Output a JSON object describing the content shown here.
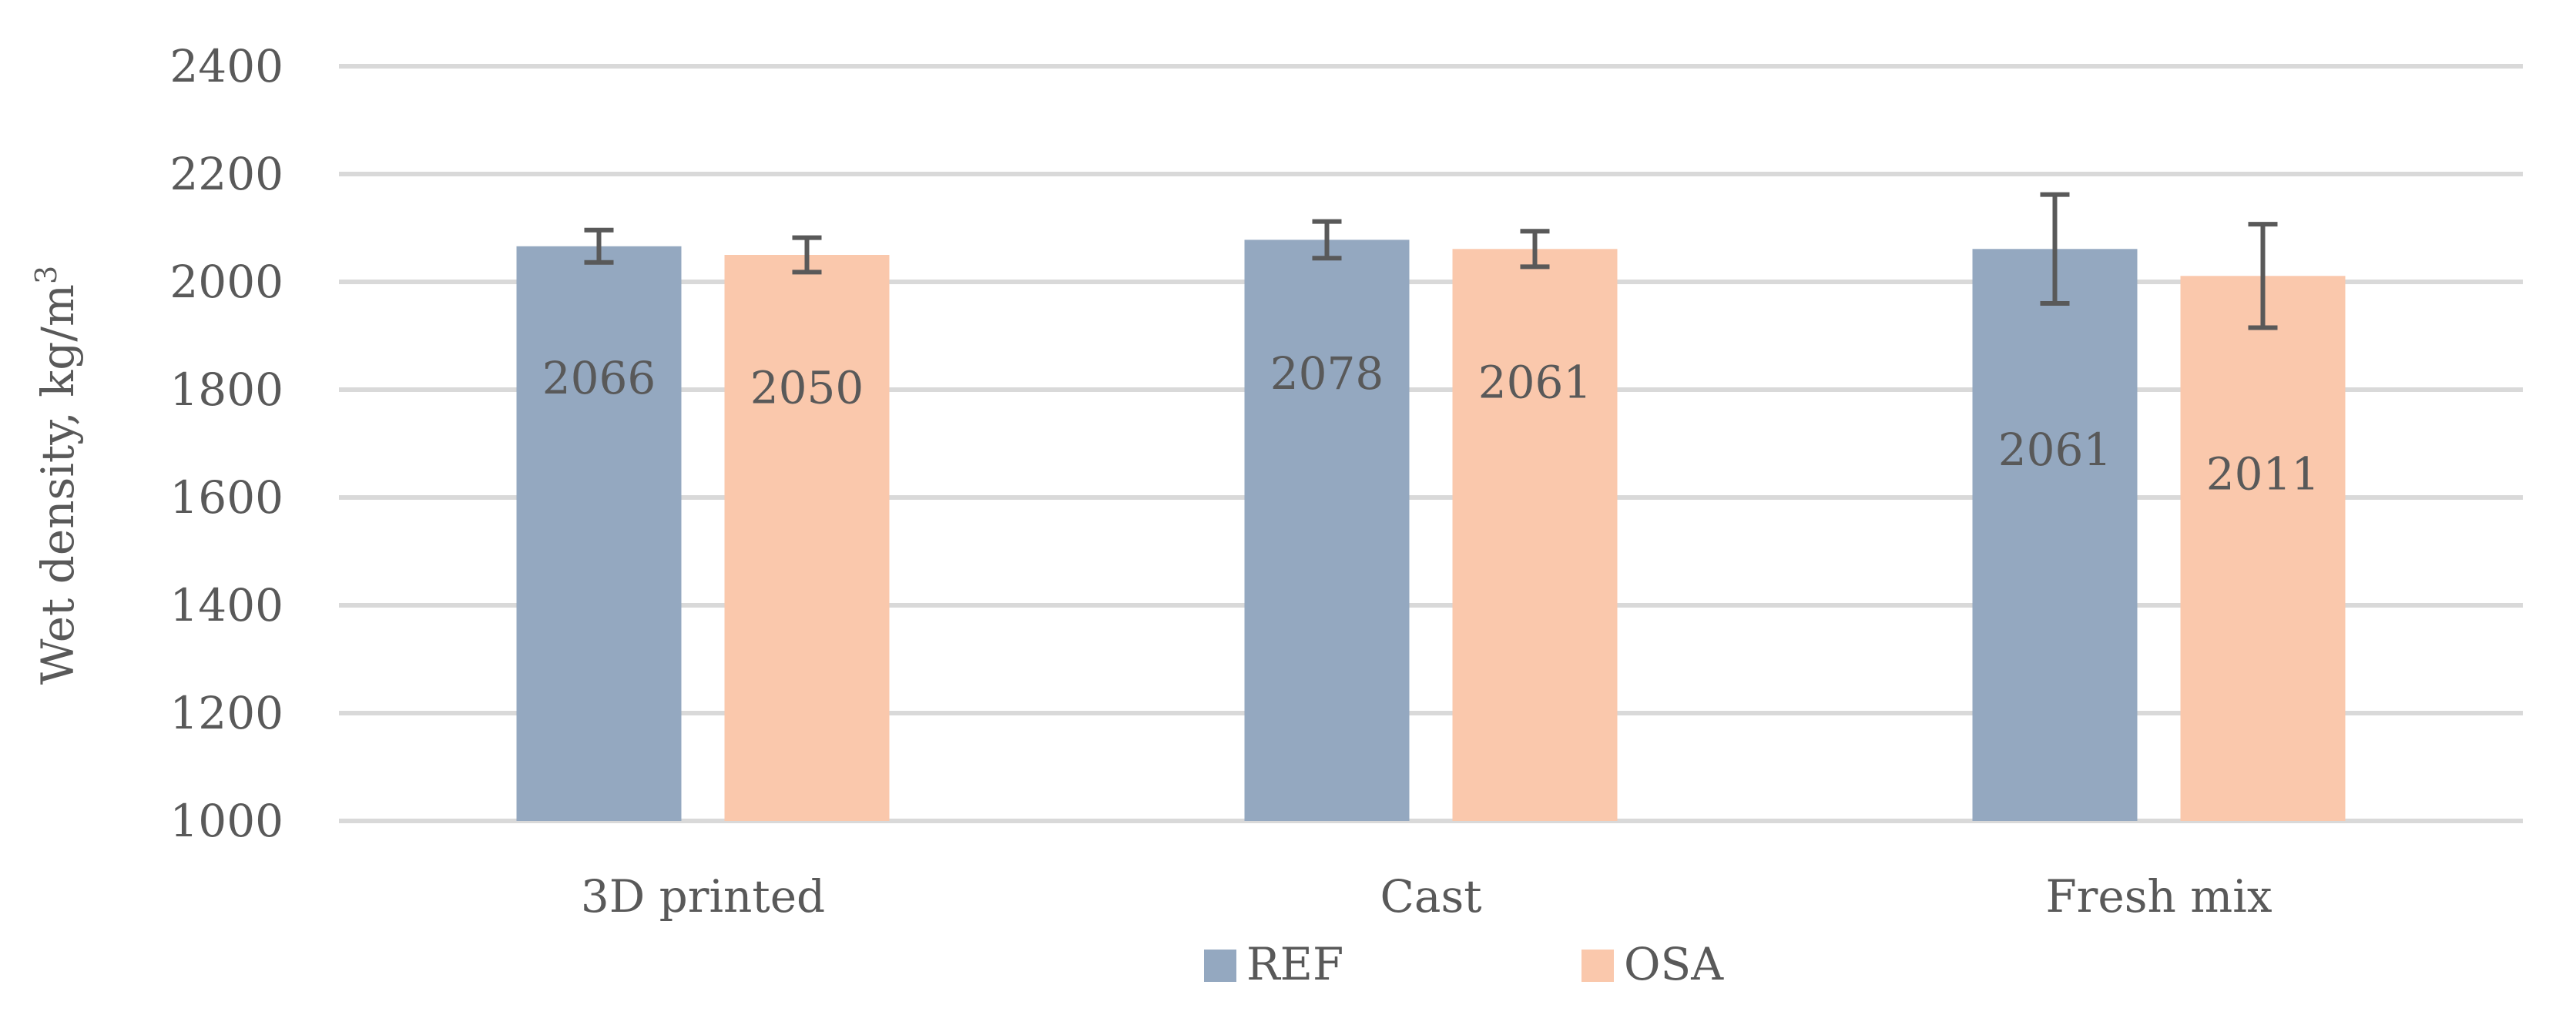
{
  "chart_data": {
    "type": "bar",
    "categories": [
      "3D printed",
      "Cast",
      "Fresh mix"
    ],
    "series": [
      {
        "name": "REF",
        "values": [
          2066,
          2078,
          2061
        ],
        "errors": [
          30,
          34,
          101
        ],
        "color": "#94A8C0"
      },
      {
        "name": "OSA",
        "values": [
          2050,
          2061,
          2011
        ],
        "errors": [
          32,
          33,
          96
        ],
        "color": "#FAC8AC"
      }
    ],
    "data_labels": [
      [
        "2066",
        "2078",
        "2061"
      ],
      [
        "2050",
        "2061",
        "2011"
      ]
    ],
    "ylabel_text": "Wet density, kg/m",
    "ylabel_superscript": "3",
    "ylim": [
      1000,
      2400
    ],
    "yticks": [
      "1000",
      "1200",
      "1400",
      "1600",
      "1800",
      "2000",
      "2200",
      "2400"
    ],
    "ytick_values": [
      1000,
      1200,
      1400,
      1600,
      1800,
      2000,
      2200,
      2400
    ],
    "grid": true,
    "legend_position": "bottom",
    "error_bar_color": "#595959",
    "gridline_color": "#D9D9D9"
  }
}
